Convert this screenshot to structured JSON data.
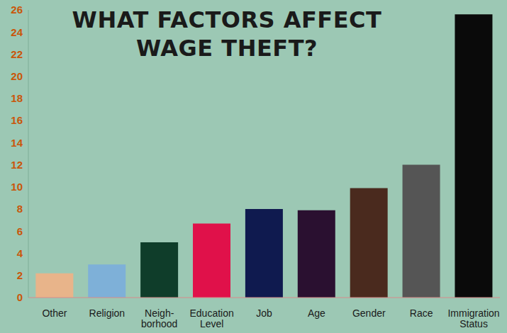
{
  "chart_data": {
    "type": "bar",
    "title": "WHAT FACTORS AFFECT WAGE THEFT?",
    "categories": [
      "Other",
      "Religion",
      "Neigh-borhood",
      "Education Level",
      "Job",
      "Age",
      "Gender",
      "Race",
      "Immigration Status"
    ],
    "values": [
      2.2,
      3,
      5,
      6.7,
      8,
      7.9,
      9.9,
      12,
      25.6
    ],
    "colors": [
      "#e8b48a",
      "#7eb0d8",
      "#0f3d2a",
      "#e0114a",
      "#0f1a4f",
      "#2a1030",
      "#4a2a1e",
      "#555555",
      "#0a0a0a"
    ],
    "ylim": [
      0,
      26
    ],
    "yticks": [
      0,
      2,
      4,
      6,
      8,
      10,
      12,
      14,
      16,
      18,
      20,
      22,
      24,
      26
    ],
    "grid": false
  }
}
